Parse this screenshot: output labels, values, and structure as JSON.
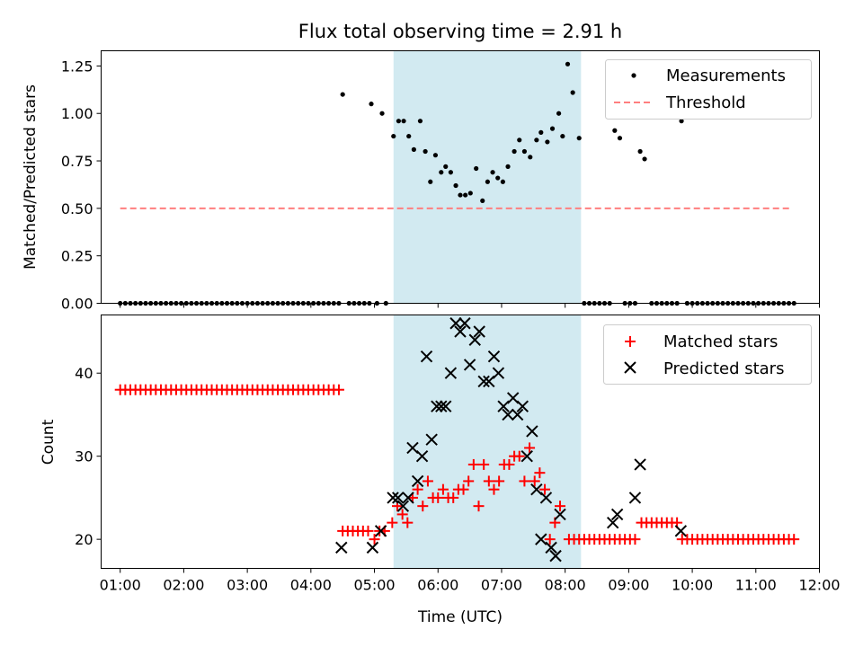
{
  "figure": {
    "title": "Flux total observing time = 2.91 h"
  },
  "colors": {
    "band": "#add8e6",
    "threshold": "#ff7f7f",
    "matched": "#ff0000",
    "predicted": "#000000",
    "measure": "#000000"
  },
  "chart_data": [
    {
      "type": "scatter",
      "title": "Flux total observing time = 2.91 h",
      "xlabel": "",
      "ylabel": "Matched/Predicted stars",
      "xlim": [
        0.7,
        12.0
      ],
      "ylim": [
        0,
        1.33
      ],
      "yticks": [
        0.0,
        0.25,
        0.5,
        0.75,
        1.0,
        1.25
      ],
      "ytick_labels": [
        "0.00",
        "0.25",
        "0.50",
        "0.75",
        "1.00",
        "1.25"
      ],
      "xticks": [
        1,
        2,
        3,
        4,
        5,
        6,
        7,
        8,
        9,
        10,
        11,
        12
      ],
      "xtick_labels": [],
      "grid": false,
      "legend_position": "top-right",
      "highlight_span": [
        5.3,
        8.25
      ],
      "threshold": {
        "name": "Threshold",
        "y": 0.5,
        "x": [
          1,
          11.55
        ]
      },
      "measurements": {
        "name": "Measurements",
        "points": [
          [
            4.5,
            1.1
          ],
          [
            4.95,
            1.05
          ],
          [
            5.12,
            1.0
          ],
          [
            5.3,
            0.88
          ],
          [
            5.38,
            0.96
          ],
          [
            5.46,
            0.96
          ],
          [
            5.54,
            0.88
          ],
          [
            5.62,
            0.81
          ],
          [
            5.72,
            0.96
          ],
          [
            5.8,
            0.8
          ],
          [
            5.88,
            0.64
          ],
          [
            5.96,
            0.78
          ],
          [
            6.05,
            0.69
          ],
          [
            6.12,
            0.72
          ],
          [
            6.2,
            0.69
          ],
          [
            6.28,
            0.62
          ],
          [
            6.35,
            0.57
          ],
          [
            6.43,
            0.57
          ],
          [
            6.51,
            0.58
          ],
          [
            6.6,
            0.71
          ],
          [
            6.7,
            0.54
          ],
          [
            6.78,
            0.64
          ],
          [
            6.86,
            0.69
          ],
          [
            6.94,
            0.66
          ],
          [
            7.02,
            0.64
          ],
          [
            7.1,
            0.72
          ],
          [
            7.2,
            0.8
          ],
          [
            7.28,
            0.86
          ],
          [
            7.36,
            0.8
          ],
          [
            7.45,
            0.77
          ],
          [
            7.55,
            0.86
          ],
          [
            7.62,
            0.9
          ],
          [
            7.72,
            0.85
          ],
          [
            7.8,
            0.92
          ],
          [
            7.9,
            1.0
          ],
          [
            7.96,
            0.88
          ],
          [
            8.04,
            1.26
          ],
          [
            8.12,
            1.11
          ],
          [
            8.22,
            0.87
          ],
          [
            8.78,
            0.91
          ],
          [
            8.86,
            0.87
          ],
          [
            9.18,
            0.8
          ],
          [
            9.25,
            0.76
          ],
          [
            9.83,
            0.96
          ]
        ],
        "zeros_x": [
          1.0,
          1.08,
          1.16,
          1.24,
          1.32,
          1.4,
          1.48,
          1.56,
          1.64,
          1.72,
          1.8,
          1.88,
          1.96,
          2.04,
          2.12,
          2.2,
          2.28,
          2.36,
          2.44,
          2.52,
          2.6,
          2.68,
          2.76,
          2.84,
          2.92,
          3.0,
          3.08,
          3.16,
          3.24,
          3.32,
          3.4,
          3.48,
          3.56,
          3.64,
          3.72,
          3.8,
          3.88,
          3.96,
          4.04,
          4.12,
          4.2,
          4.28,
          4.36,
          4.44,
          4.6,
          4.68,
          4.76,
          4.84,
          4.92,
          5.04,
          5.18,
          8.3,
          8.38,
          8.46,
          8.54,
          8.62,
          8.7,
          8.94,
          9.02,
          9.1,
          9.36,
          9.44,
          9.52,
          9.6,
          9.68,
          9.76,
          9.92,
          10.0,
          10.08,
          10.16,
          10.24,
          10.32,
          10.4,
          10.48,
          10.56,
          10.64,
          10.72,
          10.8,
          10.88,
          10.96,
          11.04,
          11.12,
          11.2,
          11.28,
          11.36,
          11.44,
          11.52,
          11.6
        ]
      }
    },
    {
      "type": "scatter",
      "xlabel": "Time (UTC)",
      "ylabel": "Count",
      "xlim": [
        0.7,
        12.0
      ],
      "ylim": [
        16.5,
        47
      ],
      "yticks": [
        20,
        30,
        40
      ],
      "ytick_labels": [
        "20",
        "30",
        "40"
      ],
      "xticks": [
        1,
        2,
        3,
        4,
        5,
        6,
        7,
        8,
        9,
        10,
        11,
        12
      ],
      "xtick_labels": [
        "01:00",
        "02:00",
        "03:00",
        "04:00",
        "05:00",
        "06:00",
        "07:00",
        "08:00",
        "09:00",
        "10:00",
        "11:00",
        "12:00"
      ],
      "grid": false,
      "legend_position": "top-right",
      "highlight_span": [
        5.3,
        8.25
      ],
      "matched": {
        "name": "Matched stars",
        "points": [
          [
            1.0,
            38
          ],
          [
            1.08,
            38
          ],
          [
            1.16,
            38
          ],
          [
            1.24,
            38
          ],
          [
            1.32,
            38
          ],
          [
            1.4,
            38
          ],
          [
            1.48,
            38
          ],
          [
            1.56,
            38
          ],
          [
            1.64,
            38
          ],
          [
            1.72,
            38
          ],
          [
            1.8,
            38
          ],
          [
            1.88,
            38
          ],
          [
            1.96,
            38
          ],
          [
            2.04,
            38
          ],
          [
            2.12,
            38
          ],
          [
            2.2,
            38
          ],
          [
            2.28,
            38
          ],
          [
            2.36,
            38
          ],
          [
            2.44,
            38
          ],
          [
            2.52,
            38
          ],
          [
            2.6,
            38
          ],
          [
            2.68,
            38
          ],
          [
            2.76,
            38
          ],
          [
            2.84,
            38
          ],
          [
            2.92,
            38
          ],
          [
            3.0,
            38
          ],
          [
            3.08,
            38
          ],
          [
            3.16,
            38
          ],
          [
            3.24,
            38
          ],
          [
            3.32,
            38
          ],
          [
            3.4,
            38
          ],
          [
            3.48,
            38
          ],
          [
            3.56,
            38
          ],
          [
            3.64,
            38
          ],
          [
            3.72,
            38
          ],
          [
            3.8,
            38
          ],
          [
            3.88,
            38
          ],
          [
            3.96,
            38
          ],
          [
            4.04,
            38
          ],
          [
            4.12,
            38
          ],
          [
            4.2,
            38
          ],
          [
            4.28,
            38
          ],
          [
            4.36,
            38
          ],
          [
            4.44,
            38
          ],
          [
            4.5,
            21
          ],
          [
            4.58,
            21
          ],
          [
            4.66,
            21
          ],
          [
            4.74,
            21
          ],
          [
            4.82,
            21
          ],
          [
            4.9,
            21
          ],
          [
            5.0,
            20
          ],
          [
            5.08,
            21
          ],
          [
            5.16,
            21
          ],
          [
            5.28,
            22
          ],
          [
            5.36,
            24
          ],
          [
            5.44,
            23
          ],
          [
            5.52,
            22
          ],
          [
            5.6,
            25
          ],
          [
            5.68,
            26
          ],
          [
            5.76,
            24
          ],
          [
            5.84,
            27
          ],
          [
            5.92,
            25
          ],
          [
            6.0,
            25
          ],
          [
            6.08,
            26
          ],
          [
            6.16,
            25
          ],
          [
            6.24,
            25
          ],
          [
            6.32,
            26
          ],
          [
            6.4,
            26
          ],
          [
            6.48,
            27
          ],
          [
            6.56,
            29
          ],
          [
            6.64,
            24
          ],
          [
            6.72,
            29
          ],
          [
            6.8,
            27
          ],
          [
            6.88,
            26
          ],
          [
            6.96,
            27
          ],
          [
            7.04,
            29
          ],
          [
            7.12,
            29
          ],
          [
            7.2,
            30
          ],
          [
            7.28,
            30
          ],
          [
            7.36,
            27
          ],
          [
            7.44,
            31
          ],
          [
            7.52,
            27
          ],
          [
            7.6,
            28
          ],
          [
            7.68,
            26
          ],
          [
            7.76,
            20
          ],
          [
            7.84,
            22
          ],
          [
            7.92,
            24
          ],
          [
            8.06,
            20
          ],
          [
            8.14,
            20
          ],
          [
            8.22,
            20
          ],
          [
            8.3,
            20
          ],
          [
            8.38,
            20
          ],
          [
            8.46,
            20
          ],
          [
            8.54,
            20
          ],
          [
            8.62,
            20
          ],
          [
            8.7,
            20
          ],
          [
            8.78,
            20
          ],
          [
            8.86,
            20
          ],
          [
            8.94,
            20
          ],
          [
            9.02,
            20
          ],
          [
            9.1,
            20
          ],
          [
            9.2,
            22
          ],
          [
            9.28,
            22
          ],
          [
            9.36,
            22
          ],
          [
            9.44,
            22
          ],
          [
            9.52,
            22
          ],
          [
            9.6,
            22
          ],
          [
            9.68,
            22
          ],
          [
            9.76,
            22
          ],
          [
            9.84,
            20
          ],
          [
            9.92,
            20
          ],
          [
            10.0,
            20
          ],
          [
            10.08,
            20
          ],
          [
            10.16,
            20
          ],
          [
            10.24,
            20
          ],
          [
            10.32,
            20
          ],
          [
            10.4,
            20
          ],
          [
            10.48,
            20
          ],
          [
            10.56,
            20
          ],
          [
            10.64,
            20
          ],
          [
            10.72,
            20
          ],
          [
            10.8,
            20
          ],
          [
            10.88,
            20
          ],
          [
            10.96,
            20
          ],
          [
            11.04,
            20
          ],
          [
            11.12,
            20
          ],
          [
            11.2,
            20
          ],
          [
            11.28,
            20
          ],
          [
            11.36,
            20
          ],
          [
            11.44,
            20
          ],
          [
            11.52,
            20
          ],
          [
            11.6,
            20
          ]
        ]
      },
      "predicted": {
        "name": "Predicted stars",
        "points": [
          [
            4.48,
            19
          ],
          [
            4.97,
            19
          ],
          [
            5.1,
            21
          ],
          [
            5.29,
            25
          ],
          [
            5.37,
            25
          ],
          [
            5.45,
            24
          ],
          [
            5.53,
            25
          ],
          [
            5.6,
            31
          ],
          [
            5.68,
            27
          ],
          [
            5.75,
            30
          ],
          [
            5.82,
            42
          ],
          [
            5.9,
            32
          ],
          [
            5.98,
            36
          ],
          [
            6.05,
            36
          ],
          [
            6.12,
            36
          ],
          [
            6.2,
            40
          ],
          [
            6.28,
            46
          ],
          [
            6.35,
            45
          ],
          [
            6.42,
            46
          ],
          [
            6.5,
            41
          ],
          [
            6.58,
            44
          ],
          [
            6.65,
            45
          ],
          [
            6.72,
            39
          ],
          [
            6.8,
            39
          ],
          [
            6.88,
            42
          ],
          [
            6.95,
            40
          ],
          [
            7.03,
            36
          ],
          [
            7.1,
            35
          ],
          [
            7.18,
            37
          ],
          [
            7.25,
            35
          ],
          [
            7.33,
            36
          ],
          [
            7.4,
            30
          ],
          [
            7.48,
            33
          ],
          [
            7.55,
            26
          ],
          [
            7.62,
            20
          ],
          [
            7.7,
            25
          ],
          [
            7.78,
            19
          ],
          [
            7.85,
            18
          ],
          [
            7.92,
            23
          ],
          [
            8.75,
            22
          ],
          [
            8.82,
            23
          ],
          [
            9.1,
            25
          ],
          [
            9.18,
            29
          ],
          [
            9.82,
            21
          ]
        ]
      }
    }
  ]
}
